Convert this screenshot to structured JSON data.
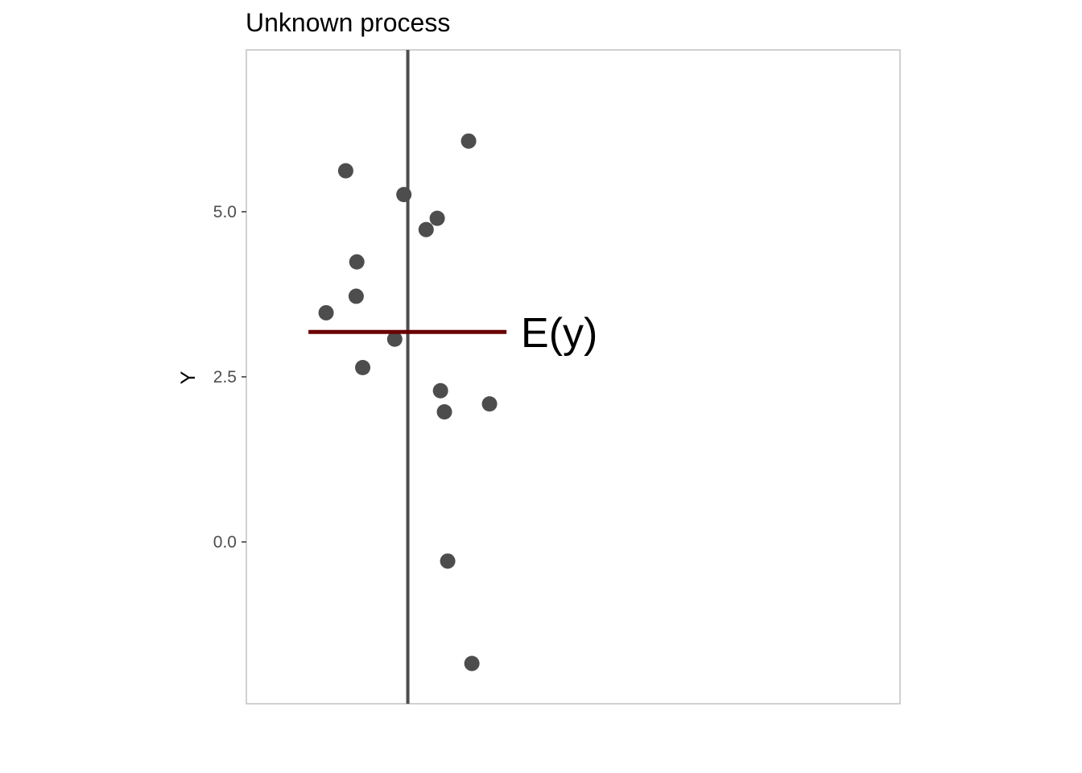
{
  "chart_data": {
    "type": "scatter",
    "title": "Unknown process",
    "xlabel": "",
    "ylabel": "Y",
    "xlim": [
      0,
      1
    ],
    "ylim": [
      -2.45,
      7.45
    ],
    "grid": false,
    "y_ticks": [
      {
        "value": 0.0,
        "label": "0.0"
      },
      {
        "value": 2.5,
        "label": "2.5"
      },
      {
        "value": 5.0,
        "label": "5.0"
      }
    ],
    "points": [
      {
        "x": 0.152,
        "y": 5.62
      },
      {
        "x": 0.34,
        "y": 6.07
      },
      {
        "x": 0.241,
        "y": 5.26
      },
      {
        "x": 0.292,
        "y": 4.9
      },
      {
        "x": 0.275,
        "y": 4.73
      },
      {
        "x": 0.169,
        "y": 4.24
      },
      {
        "x": 0.168,
        "y": 3.72
      },
      {
        "x": 0.122,
        "y": 3.47
      },
      {
        "x": 0.227,
        "y": 3.07
      },
      {
        "x": 0.178,
        "y": 2.64
      },
      {
        "x": 0.297,
        "y": 2.29
      },
      {
        "x": 0.372,
        "y": 2.09
      },
      {
        "x": 0.303,
        "y": 1.97
      },
      {
        "x": 0.308,
        "y": -0.29
      },
      {
        "x": 0.345,
        "y": -1.84
      }
    ],
    "vertical_line": {
      "x": 0.247
    },
    "mean_line": {
      "y": 3.18,
      "x_start": 0.095,
      "x_end": 0.398,
      "color": "#6b0000"
    },
    "annotation": {
      "text": "E(y)",
      "x": 0.42,
      "y": 3.18
    },
    "point_color": "#4d4d4d",
    "line_color": "#4d4d4d"
  }
}
